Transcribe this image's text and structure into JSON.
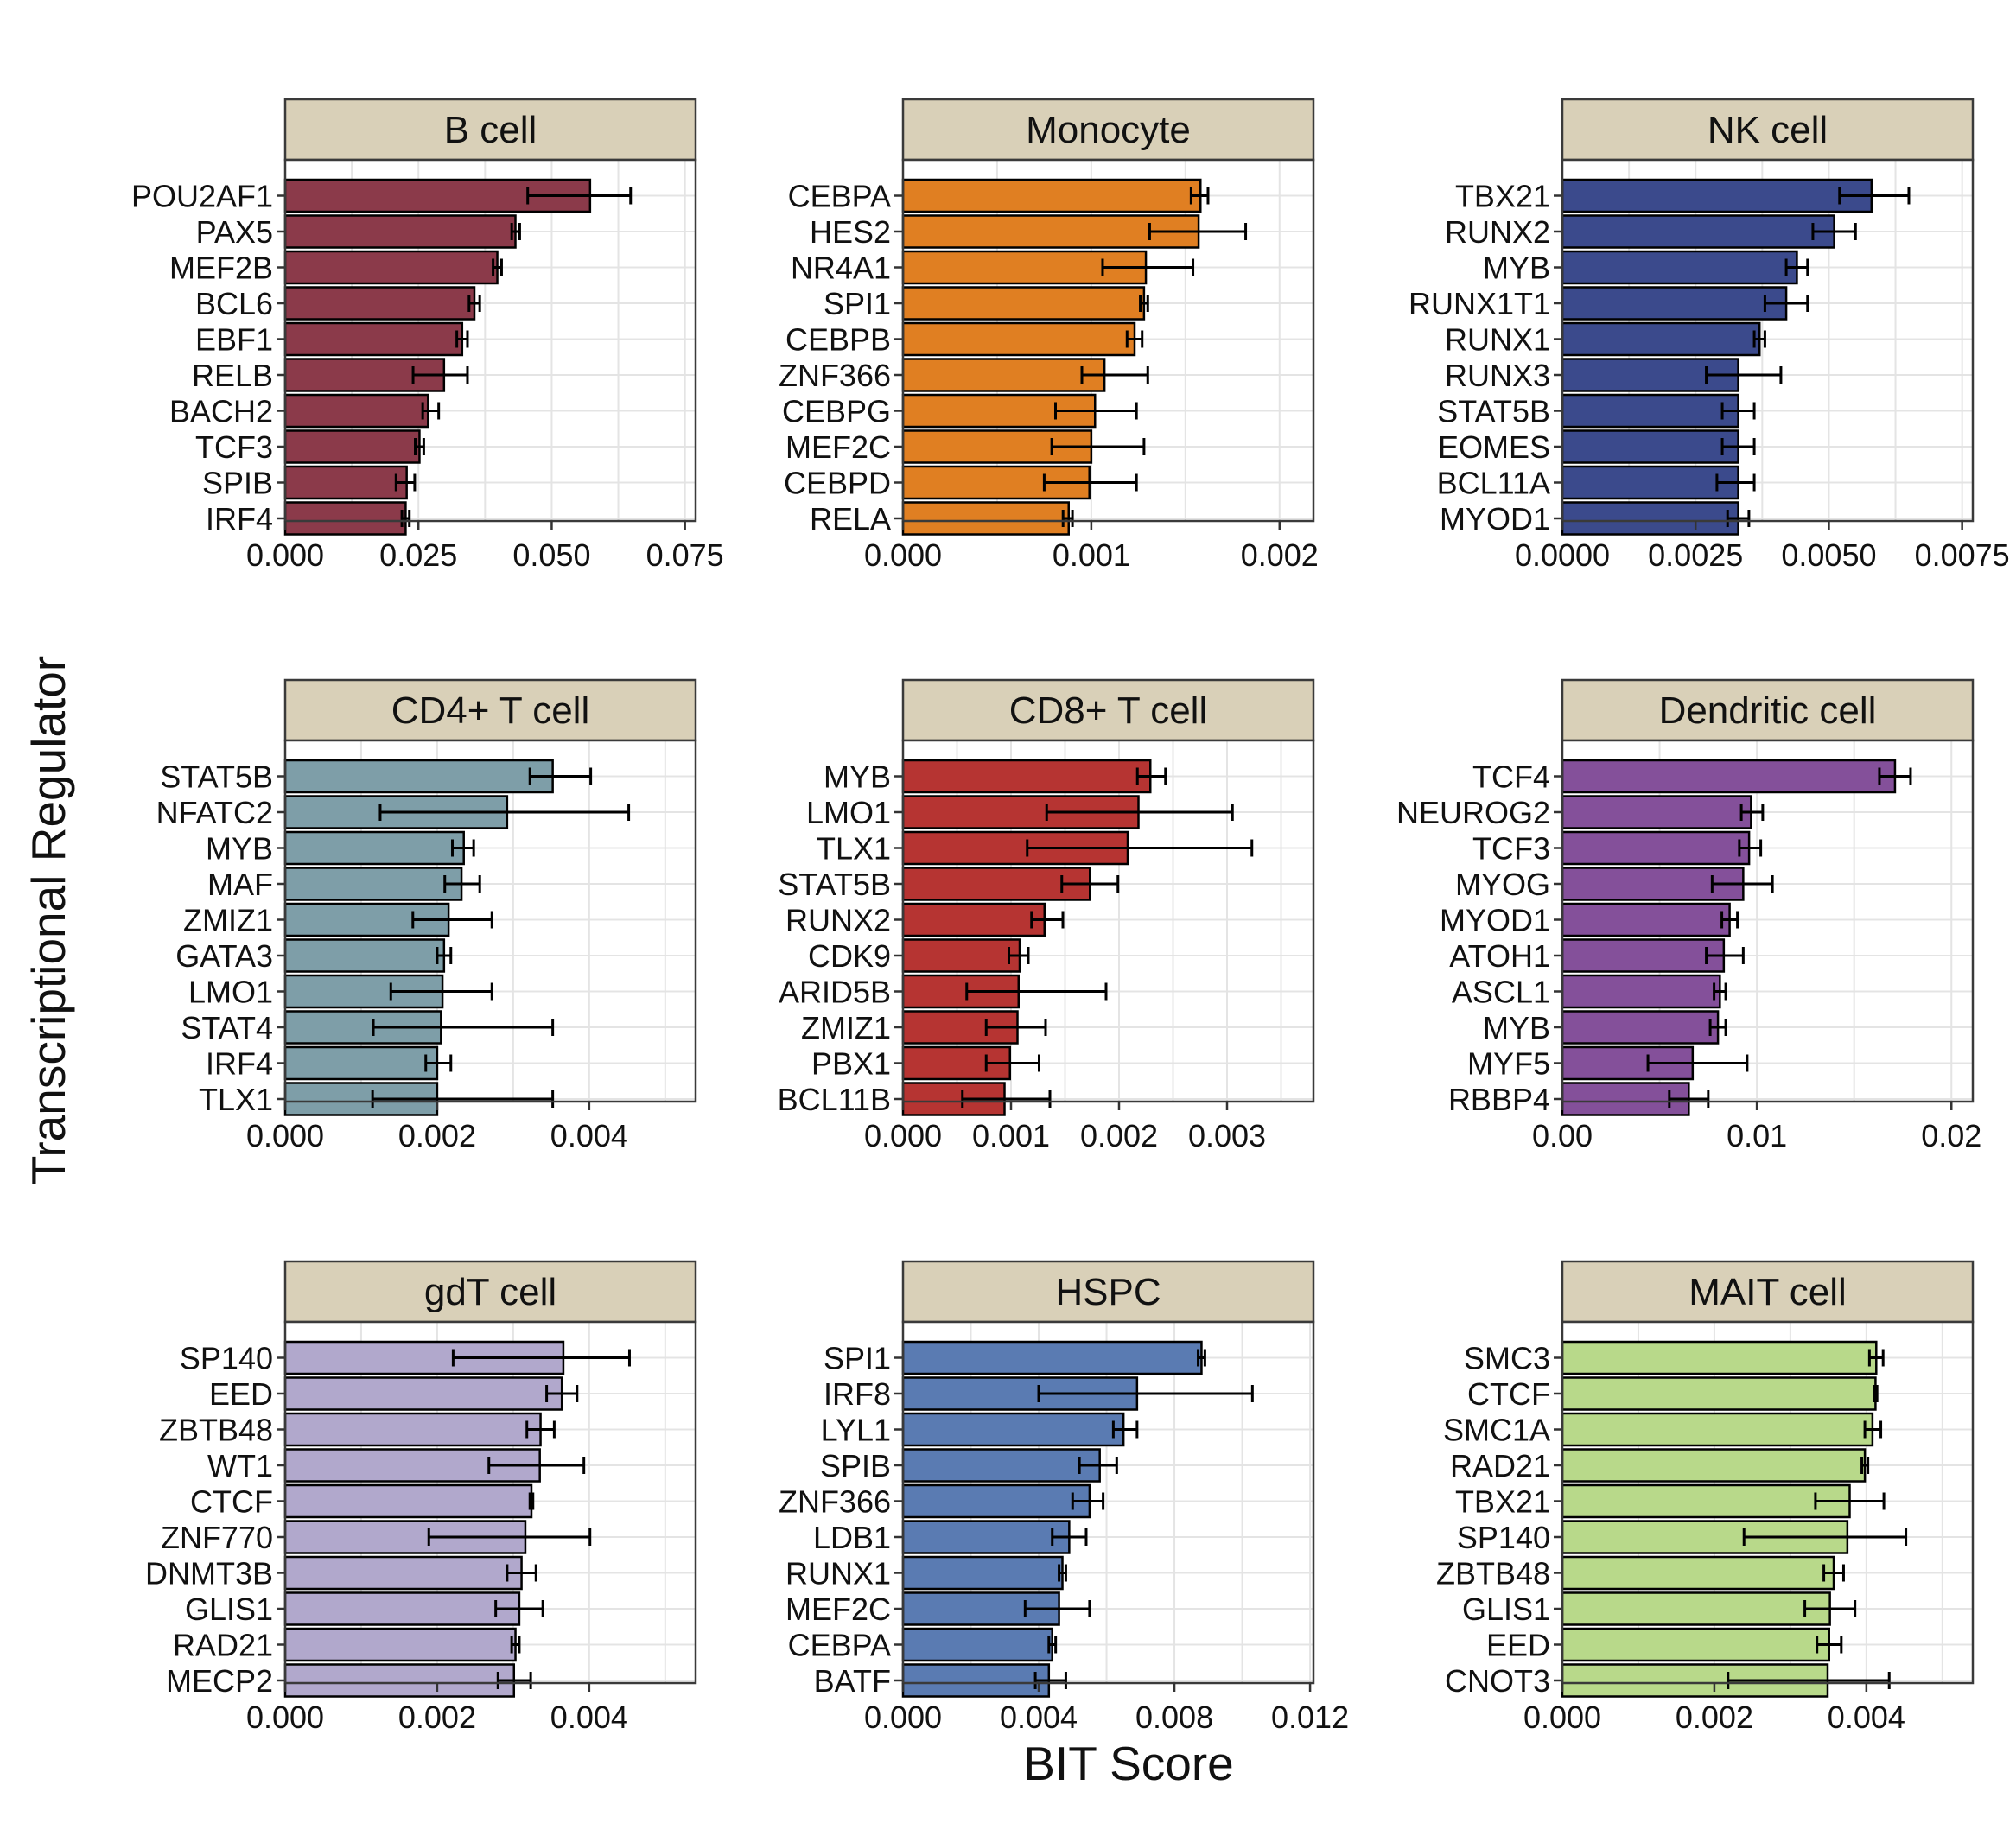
{
  "figure": {
    "ylabel": "Transcriptional Regulator",
    "xlabel": "BIT Score",
    "colors": {
      "strip_fill": "#d9d0b8",
      "strip_border": "#3a3a3a",
      "grid": "#e4e4e4",
      "panel_border": "#3a3a3a"
    }
  },
  "chart_data": [
    {
      "type": "bar",
      "title": "B cell",
      "color": "#8b3a4a",
      "xlim": [
        0,
        0.077
      ],
      "xticks": [
        0,
        0.025,
        0.05,
        0.075
      ],
      "xtick_labels": [
        "0.000",
        "0.025",
        "0.050",
        "0.075"
      ],
      "categories": [
        "POU2AF1",
        "PAX5",
        "MEF2B",
        "BCL6",
        "EBF1",
        "RELB",
        "BACH2",
        "TCF3",
        "SPIB",
        "IRF4"
      ],
      "values": [
        0.0572,
        0.0432,
        0.0398,
        0.0355,
        0.0332,
        0.0298,
        0.0268,
        0.0252,
        0.0228,
        0.0226
      ],
      "err_low": [
        0.0455,
        0.0425,
        0.039,
        0.0345,
        0.0322,
        0.024,
        0.0258,
        0.0244,
        0.0208,
        0.0219
      ],
      "err_high": [
        0.0648,
        0.044,
        0.0406,
        0.0365,
        0.0342,
        0.0342,
        0.0288,
        0.026,
        0.0243,
        0.0233
      ]
    },
    {
      "type": "bar",
      "title": "Monocyte",
      "color": "#e07f22",
      "xlim": [
        0,
        0.00218
      ],
      "xticks": [
        0,
        0.001,
        0.002
      ],
      "xtick_labels": [
        "0.000",
        "0.001",
        "0.002"
      ],
      "categories": [
        "CEBPA",
        "HES2",
        "NR4A1",
        "SPI1",
        "CEBPB",
        "ZNF366",
        "CEBPG",
        "MEF2C",
        "CEBPD",
        "RELA"
      ],
      "values": [
        0.00158,
        0.00157,
        0.00129,
        0.00128,
        0.00123,
        0.00107,
        0.00102,
        0.001,
        0.00099,
        0.00088
      ],
      "err_low": [
        0.00153,
        0.00131,
        0.00106,
        0.00126,
        0.00119,
        0.00095,
        0.00081,
        0.00079,
        0.00075,
        0.00085
      ],
      "err_high": [
        0.00162,
        0.00182,
        0.00154,
        0.0013,
        0.00127,
        0.0013,
        0.00124,
        0.00128,
        0.00124,
        0.0009
      ]
    },
    {
      "type": "bar",
      "title": "NK cell",
      "color": "#3b4a8c",
      "xlim": [
        0,
        0.0077
      ],
      "xticks": [
        0,
        0.0025,
        0.005,
        0.0075
      ],
      "xtick_labels": [
        "0.0000",
        "0.0025",
        "0.0050",
        "0.0075"
      ],
      "categories": [
        "TBX21",
        "RUNX2",
        "MYB",
        "RUNX1T1",
        "RUNX1",
        "RUNX3",
        "STAT5B",
        "EOMES",
        "BCL11A",
        "MYOD1"
      ],
      "values": [
        0.0058,
        0.0051,
        0.0044,
        0.0042,
        0.0037,
        0.0033,
        0.0033,
        0.0033,
        0.0033,
        0.0033
      ],
      "err_low": [
        0.0052,
        0.0047,
        0.0042,
        0.0038,
        0.0036,
        0.0027,
        0.003,
        0.003,
        0.0029,
        0.0031
      ],
      "err_high": [
        0.0065,
        0.0055,
        0.0046,
        0.0046,
        0.0038,
        0.0041,
        0.0036,
        0.0036,
        0.0036,
        0.0035
      ]
    },
    {
      "type": "bar",
      "title": "CD4+ T cell",
      "color": "#7e9ea8",
      "xlim": [
        0,
        0.0054
      ],
      "xticks": [
        0,
        0.002,
        0.004
      ],
      "xtick_labels": [
        "0.000",
        "0.002",
        "0.004"
      ],
      "categories": [
        "STAT5B",
        "NFATC2",
        "MYB",
        "MAF",
        "ZMIZ1",
        "GATA3",
        "LMO1",
        "STAT4",
        "IRF4",
        "TLX1"
      ],
      "values": [
        0.00352,
        0.00292,
        0.00235,
        0.00232,
        0.00215,
        0.00209,
        0.00207,
        0.00205,
        0.002,
        0.002
      ],
      "err_low": [
        0.00322,
        0.00125,
        0.0022,
        0.0021,
        0.00168,
        0.002,
        0.00139,
        0.00116,
        0.00185,
        0.00115
      ],
      "err_high": [
        0.00402,
        0.00452,
        0.00248,
        0.00256,
        0.00272,
        0.00218,
        0.00272,
        0.00352,
        0.00218,
        0.00352
      ]
    },
    {
      "type": "bar",
      "title": "CD8+ T cell",
      "color": "#b63432",
      "xlim": [
        0,
        0.0038
      ],
      "xticks": [
        0,
        0.001,
        0.002,
        0.003
      ],
      "xtick_labels": [
        "0.000",
        "0.001",
        "0.002",
        "0.003"
      ],
      "categories": [
        "MYB",
        "LMO1",
        "TLX1",
        "STAT5B",
        "RUNX2",
        "CDK9",
        "ARID5B",
        "ZMIZ1",
        "PBX1",
        "BCL11B"
      ],
      "values": [
        0.00229,
        0.00218,
        0.00208,
        0.00173,
        0.00131,
        0.00108,
        0.00107,
        0.00106,
        0.00099,
        0.00094
      ],
      "err_low": [
        0.00217,
        0.00133,
        0.00115,
        0.00147,
        0.00119,
        0.00098,
        0.00059,
        0.00077,
        0.00077,
        0.00055
      ],
      "err_high": [
        0.00243,
        0.00305,
        0.00323,
        0.00199,
        0.00148,
        0.00116,
        0.00188,
        0.00132,
        0.00126,
        0.00136
      ]
    },
    {
      "type": "bar",
      "title": "Dendritic cell",
      "color": "#84509a",
      "xlim": [
        0,
        0.0211
      ],
      "xticks": [
        0,
        0.01,
        0.02
      ],
      "xtick_labels": [
        "0.00",
        "0.01",
        "0.02"
      ],
      "categories": [
        "TCF4",
        "NEUROG2",
        "TCF3",
        "MYOG",
        "MYOD1",
        "ATOH1",
        "ASCL1",
        "MYB",
        "MYF5",
        "RBBP4"
      ],
      "values": [
        0.0171,
        0.0097,
        0.0096,
        0.0093,
        0.0086,
        0.0083,
        0.0081,
        0.008,
        0.0067,
        0.0065
      ],
      "err_low": [
        0.0163,
        0.0092,
        0.0091,
        0.0077,
        0.0082,
        0.0074,
        0.0078,
        0.0076,
        0.0044,
        0.0055
      ],
      "err_high": [
        0.0179,
        0.0103,
        0.0102,
        0.0108,
        0.009,
        0.0093,
        0.0084,
        0.0084,
        0.0095,
        0.0075
      ]
    },
    {
      "type": "bar",
      "title": "gdT cell",
      "color": "#b1a8cc",
      "xlim": [
        0,
        0.0054
      ],
      "xticks": [
        0,
        0.002,
        0.004
      ],
      "xtick_labels": [
        "0.000",
        "0.002",
        "0.004"
      ],
      "categories": [
        "SP140",
        "EED",
        "ZBTB48",
        "WT1",
        "CTCF",
        "ZNF770",
        "DNMT3B",
        "GLIS1",
        "RAD21",
        "MECP2"
      ],
      "values": [
        0.00366,
        0.00364,
        0.00336,
        0.00335,
        0.00324,
        0.00316,
        0.00311,
        0.00308,
        0.00303,
        0.00301
      ],
      "err_low": [
        0.00221,
        0.00344,
        0.00318,
        0.00268,
        0.00322,
        0.00189,
        0.00292,
        0.00277,
        0.00298,
        0.0028
      ],
      "err_high": [
        0.00453,
        0.00384,
        0.00354,
        0.00393,
        0.00326,
        0.00401,
        0.0033,
        0.00339,
        0.00308,
        0.00323
      ]
    },
    {
      "type": "bar",
      "title": "HSPC",
      "color": "#5a7bb2",
      "xlim": [
        0,
        0.0121
      ],
      "xticks": [
        0,
        0.004,
        0.008,
        0.012
      ],
      "xtick_labels": [
        "0.000",
        "0.004",
        "0.008",
        "0.012"
      ],
      "categories": [
        "SPI1",
        "IRF8",
        "LYL1",
        "SPIB",
        "ZNF366",
        "LDB1",
        "RUNX1",
        "MEF2C",
        "CEBPA",
        "BATF"
      ],
      "values": [
        0.0088,
        0.0069,
        0.0065,
        0.0058,
        0.0055,
        0.0049,
        0.0047,
        0.0046,
        0.0044,
        0.0043
      ],
      "err_low": [
        0.0087,
        0.004,
        0.0062,
        0.0052,
        0.005,
        0.0044,
        0.0046,
        0.0036,
        0.0043,
        0.0039
      ],
      "err_high": [
        0.0089,
        0.0103,
        0.0069,
        0.0063,
        0.0059,
        0.0054,
        0.0048,
        0.0055,
        0.0045,
        0.0048
      ]
    },
    {
      "type": "bar",
      "title": "MAIT cell",
      "color": "#b8d98a",
      "xlim": [
        0,
        0.0054
      ],
      "xticks": [
        0,
        0.002,
        0.004
      ],
      "xtick_labels": [
        "0.000",
        "0.002",
        "0.004"
      ],
      "categories": [
        "SMC3",
        "CTCF",
        "SMC1A",
        "RAD21",
        "TBX21",
        "SP140",
        "ZBTB48",
        "GLIS1",
        "EED",
        "CNOT3"
      ],
      "values": [
        0.00413,
        0.00412,
        0.00408,
        0.00398,
        0.00378,
        0.00375,
        0.00357,
        0.00352,
        0.00351,
        0.00349
      ],
      "err_low": [
        0.00404,
        0.0041,
        0.00398,
        0.00394,
        0.00333,
        0.00239,
        0.00344,
        0.00319,
        0.00335,
        0.00218
      ],
      "err_high": [
        0.00422,
        0.00414,
        0.00419,
        0.00402,
        0.00423,
        0.00452,
        0.0037,
        0.00385,
        0.00367,
        0.0043
      ]
    }
  ]
}
